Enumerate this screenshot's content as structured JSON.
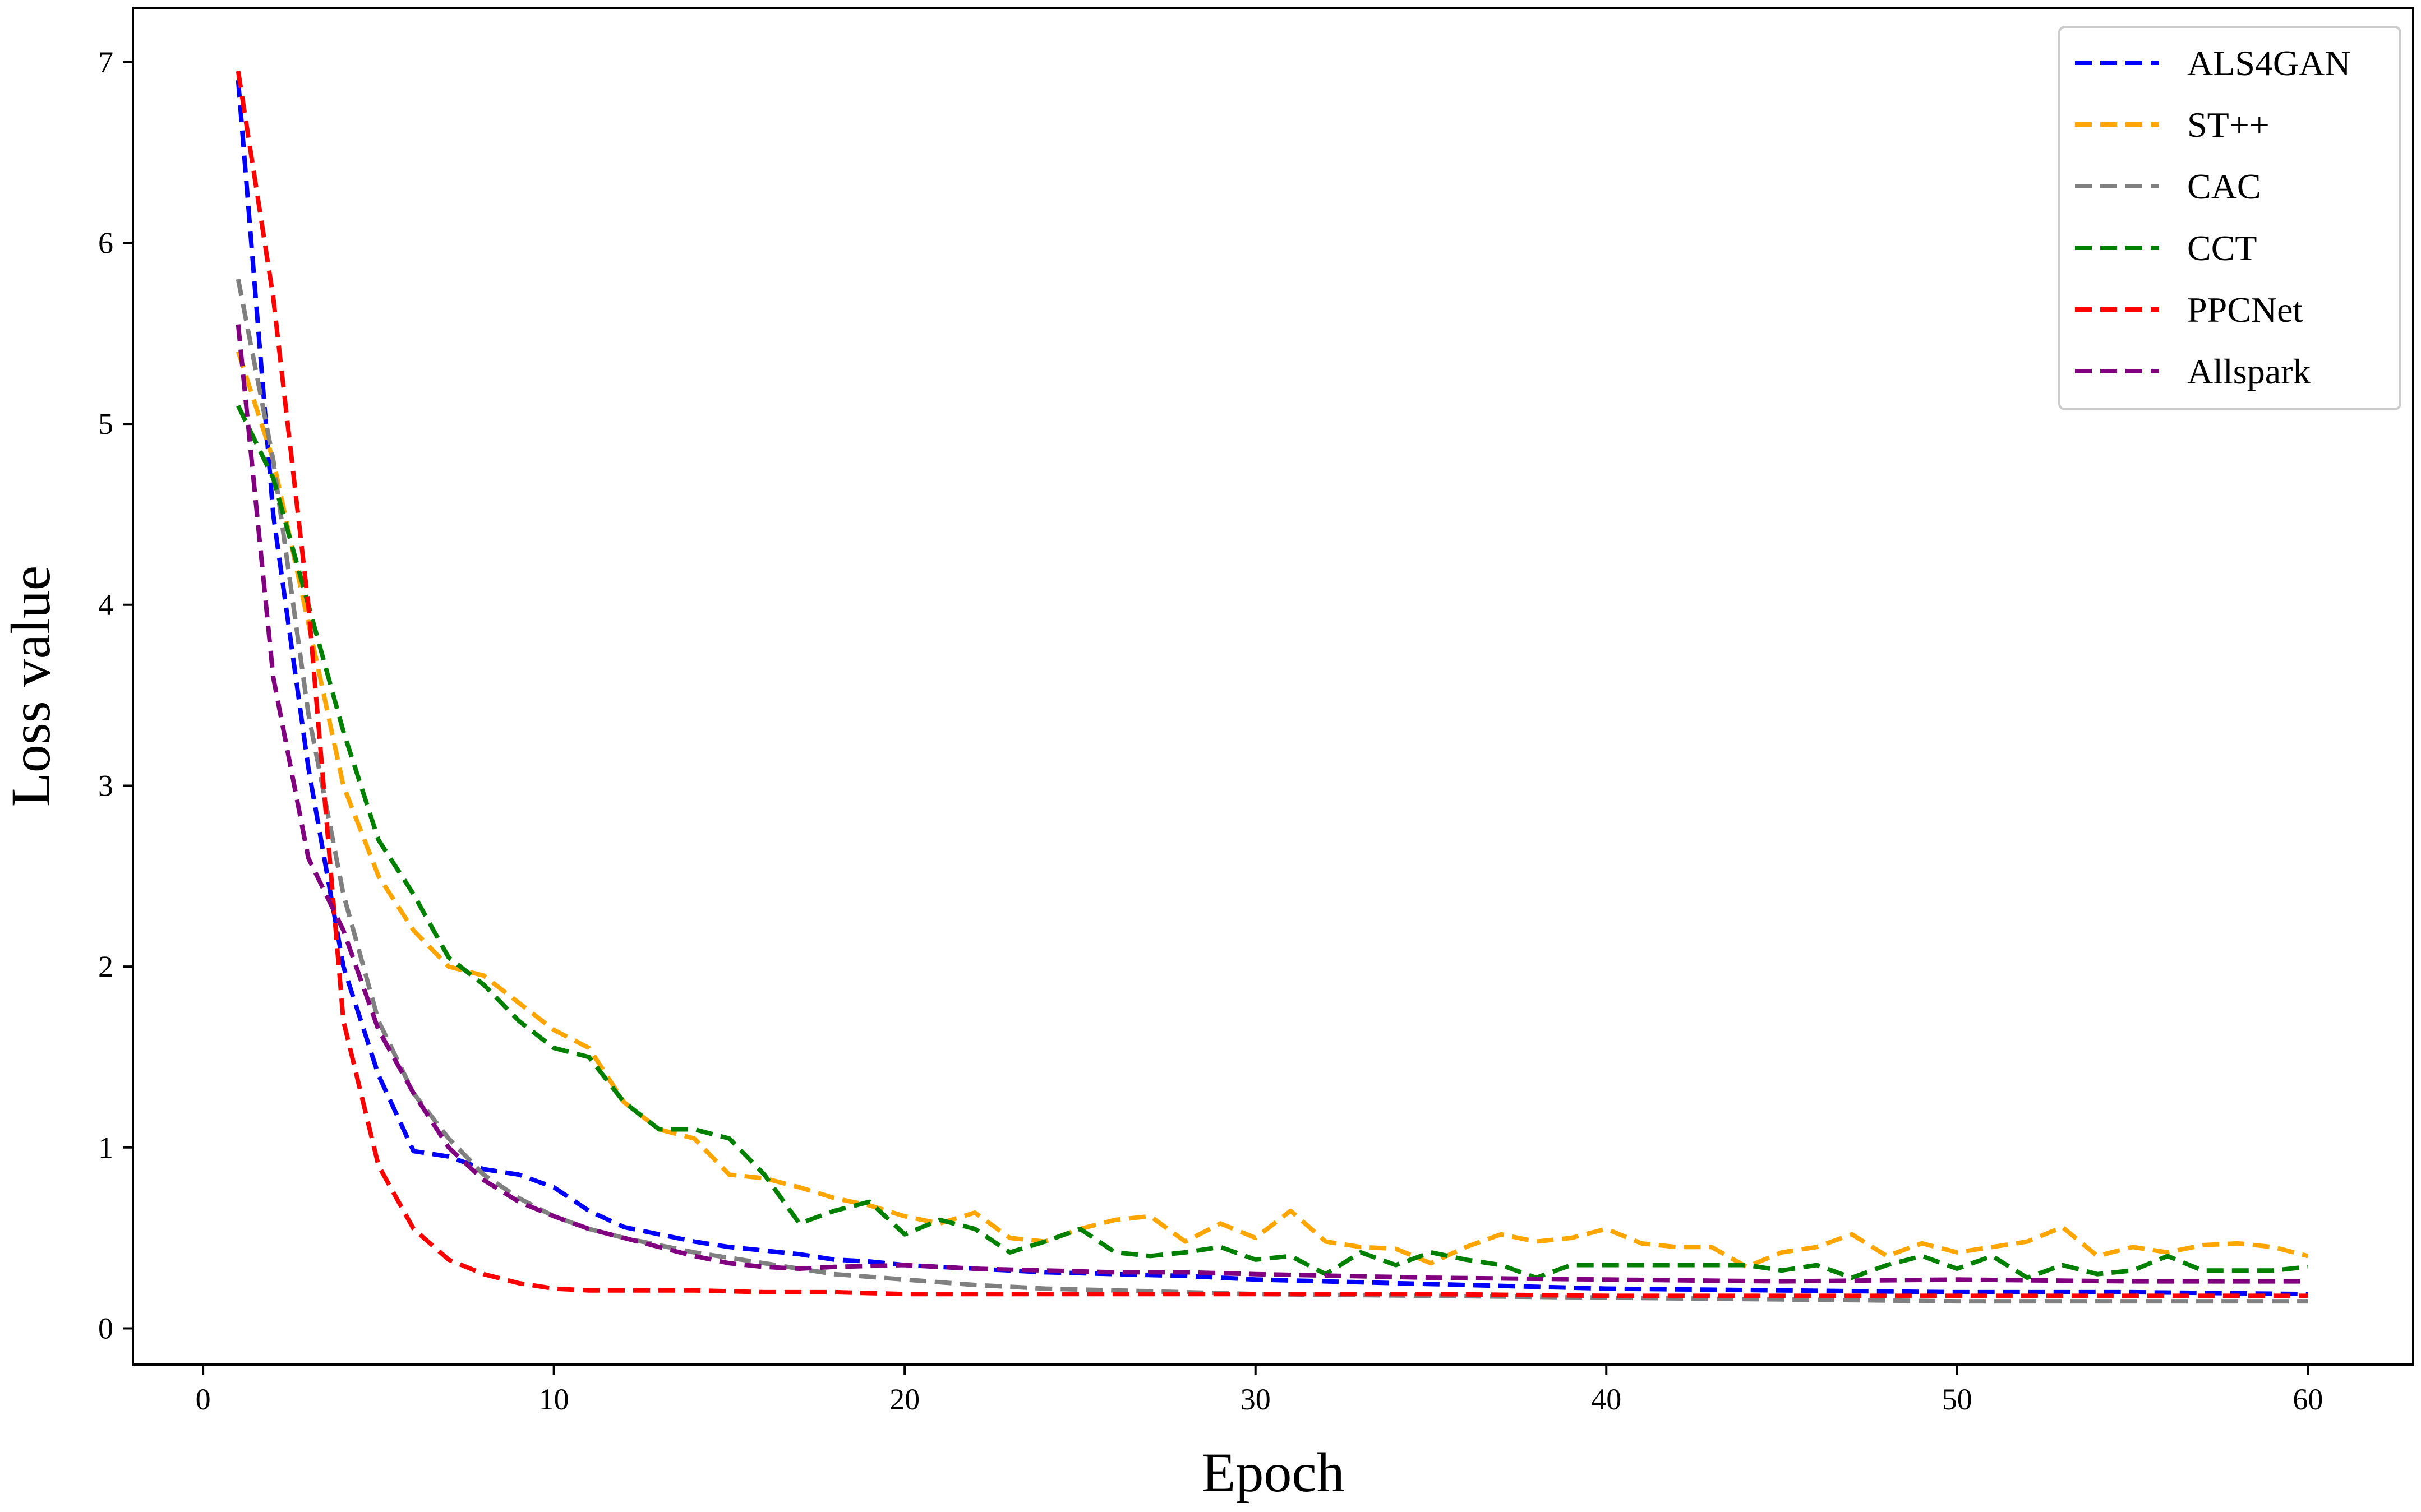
{
  "chart_data": {
    "type": "line",
    "title": "",
    "xlabel": "Epoch",
    "ylabel": "Loss value",
    "xlim": [
      -2,
      63
    ],
    "ylim": [
      -0.2,
      7.3
    ],
    "xticks": [
      0,
      10,
      20,
      30,
      40,
      50,
      60
    ],
    "yticks": [
      0,
      1,
      2,
      3,
      4,
      5,
      6,
      7
    ],
    "grid": false,
    "legend_position": "top-right",
    "line_style": "dashed",
    "series": [
      {
        "name": "ALS4GAN",
        "color": "#0000ff",
        "x": [
          1,
          2,
          3,
          4,
          5,
          6,
          7,
          8,
          9,
          10,
          11,
          12,
          13,
          14,
          15,
          16,
          17,
          18,
          19,
          20,
          22,
          24,
          26,
          28,
          30,
          32,
          34,
          36,
          38,
          40,
          45,
          50,
          55,
          60
        ],
        "values": [
          6.9,
          4.5,
          3.1,
          2.0,
          1.4,
          0.98,
          0.95,
          0.88,
          0.85,
          0.78,
          0.65,
          0.56,
          0.52,
          0.48,
          0.45,
          0.43,
          0.41,
          0.38,
          0.37,
          0.35,
          0.33,
          0.31,
          0.3,
          0.29,
          0.27,
          0.26,
          0.25,
          0.24,
          0.23,
          0.22,
          0.21,
          0.2,
          0.2,
          0.19
        ]
      },
      {
        "name": "ST++",
        "color": "#ffa500",
        "x": [
          1,
          2,
          3,
          4,
          5,
          6,
          7,
          8,
          9,
          10,
          11,
          12,
          13,
          14,
          15,
          16,
          17,
          18,
          19,
          20,
          21,
          22,
          23,
          24,
          25,
          26,
          27,
          28,
          29,
          30,
          31,
          32,
          33,
          34,
          35,
          36,
          37,
          38,
          39,
          40,
          41,
          42,
          43,
          44,
          45,
          46,
          47,
          48,
          49,
          50,
          51,
          52,
          53,
          54,
          55,
          56,
          57,
          58,
          59,
          60
        ],
        "values": [
          5.4,
          4.8,
          3.9,
          3.0,
          2.5,
          2.2,
          2.0,
          1.95,
          1.8,
          1.65,
          1.55,
          1.25,
          1.1,
          1.05,
          0.85,
          0.83,
          0.78,
          0.72,
          0.68,
          0.62,
          0.58,
          0.64,
          0.5,
          0.48,
          0.55,
          0.6,
          0.62,
          0.48,
          0.58,
          0.5,
          0.65,
          0.48,
          0.45,
          0.44,
          0.36,
          0.45,
          0.52,
          0.48,
          0.5,
          0.55,
          0.47,
          0.45,
          0.45,
          0.34,
          0.42,
          0.45,
          0.52,
          0.4,
          0.47,
          0.42,
          0.45,
          0.48,
          0.56,
          0.4,
          0.45,
          0.42,
          0.46,
          0.47,
          0.45,
          0.4
        ]
      },
      {
        "name": "CAC",
        "color": "#808080",
        "x": [
          1,
          2,
          3,
          4,
          5,
          6,
          7,
          8,
          9,
          10,
          11,
          12,
          14,
          16,
          18,
          20,
          22,
          24,
          26,
          28,
          30,
          35,
          40,
          45,
          50,
          55,
          60
        ],
        "values": [
          5.8,
          4.8,
          3.4,
          2.4,
          1.7,
          1.3,
          1.05,
          0.85,
          0.72,
          0.62,
          0.55,
          0.5,
          0.42,
          0.36,
          0.3,
          0.27,
          0.24,
          0.22,
          0.21,
          0.2,
          0.19,
          0.18,
          0.17,
          0.16,
          0.15,
          0.15,
          0.15
        ]
      },
      {
        "name": "CCT",
        "color": "#008000",
        "x": [
          1,
          2,
          3,
          4,
          5,
          6,
          7,
          8,
          9,
          10,
          11,
          12,
          13,
          14,
          15,
          16,
          17,
          18,
          19,
          20,
          21,
          22,
          23,
          24,
          25,
          26,
          27,
          28,
          29,
          30,
          31,
          32,
          33,
          34,
          35,
          36,
          37,
          38,
          39,
          40,
          41,
          42,
          43,
          44,
          45,
          46,
          47,
          48,
          49,
          50,
          51,
          52,
          53,
          54,
          55,
          56,
          57,
          58,
          59,
          60
        ],
        "values": [
          5.1,
          4.7,
          4.0,
          3.3,
          2.7,
          2.4,
          2.05,
          1.9,
          1.7,
          1.55,
          1.5,
          1.25,
          1.1,
          1.1,
          1.05,
          0.85,
          0.58,
          0.65,
          0.7,
          0.52,
          0.6,
          0.55,
          0.42,
          0.48,
          0.55,
          0.42,
          0.4,
          0.42,
          0.45,
          0.38,
          0.4,
          0.3,
          0.42,
          0.35,
          0.42,
          0.38,
          0.35,
          0.28,
          0.35,
          0.35,
          0.35,
          0.35,
          0.35,
          0.35,
          0.32,
          0.35,
          0.28,
          0.35,
          0.4,
          0.33,
          0.4,
          0.28,
          0.35,
          0.3,
          0.32,
          0.4,
          0.32,
          0.32,
          0.32,
          0.34
        ]
      },
      {
        "name": "PPCNet",
        "color": "#ff0000",
        "x": [
          1,
          2,
          3,
          4,
          5,
          6,
          7,
          8,
          9,
          10,
          11,
          12,
          14,
          16,
          18,
          20,
          25,
          30,
          35,
          40,
          45,
          50,
          55,
          60
        ],
        "values": [
          6.95,
          5.7,
          4.0,
          1.7,
          0.9,
          0.55,
          0.38,
          0.3,
          0.25,
          0.22,
          0.21,
          0.21,
          0.21,
          0.2,
          0.2,
          0.19,
          0.19,
          0.19,
          0.19,
          0.18,
          0.18,
          0.18,
          0.18,
          0.18
        ]
      },
      {
        "name": "Allspark",
        "color": "#800080",
        "x": [
          1,
          2,
          3,
          4,
          5,
          6,
          7,
          8,
          9,
          10,
          11,
          12,
          13,
          14,
          15,
          16,
          17,
          18,
          20,
          22,
          24,
          26,
          28,
          30,
          35,
          40,
          45,
          50,
          55,
          60
        ],
        "values": [
          5.55,
          3.6,
          2.6,
          2.2,
          1.65,
          1.3,
          1.0,
          0.82,
          0.7,
          0.62,
          0.55,
          0.5,
          0.45,
          0.4,
          0.36,
          0.34,
          0.33,
          0.34,
          0.35,
          0.33,
          0.32,
          0.31,
          0.31,
          0.3,
          0.28,
          0.27,
          0.26,
          0.27,
          0.26,
          0.26
        ]
      }
    ]
  }
}
